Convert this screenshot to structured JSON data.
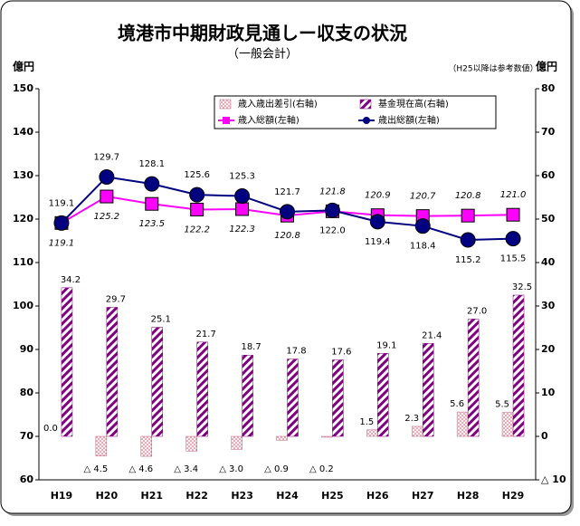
{
  "chart_data": {
    "type": "bar",
    "title": "境港市中期財政見通しー収支の状況",
    "subtitle": "（一般会計）",
    "note": "（H25以降は参考数値）",
    "y_label": "億円",
    "y2_label": "億円",
    "categories": [
      "H19",
      "H20",
      "H21",
      "H22",
      "H23",
      "H24",
      "H25",
      "H26",
      "H27",
      "H28",
      "H29"
    ],
    "ylim": [
      60,
      150
    ],
    "yticks": [
      60,
      70,
      80,
      90,
      100,
      110,
      120,
      130,
      140,
      150
    ],
    "y2lim": [
      -10,
      80
    ],
    "y2ticks": [
      {
        "value": -10,
        "label": "△ 10"
      },
      0,
      10,
      20,
      30,
      40,
      50,
      60,
      70,
      80
    ],
    "grid": false,
    "series": [
      {
        "name": "歳入歳出差引(右軸)",
        "type": "bar",
        "axis": "y2",
        "color": "#c06080",
        "values": [
          0.0,
          -4.5,
          -4.6,
          -3.4,
          -3.0,
          -0.9,
          -0.2,
          1.5,
          2.3,
          5.6,
          5.5
        ],
        "value_labels": [
          "0.0",
          "△ 4.5",
          "△ 4.6",
          "△ 3.4",
          "△ 3.0",
          "△ 0.9",
          "△ 0.2",
          "1.5",
          "2.3",
          "5.6",
          "5.5"
        ]
      },
      {
        "name": "基金現在高(右軸)",
        "type": "bar",
        "axis": "y2",
        "color": "#800080",
        "values": [
          34.2,
          29.7,
          25.1,
          21.7,
          18.7,
          17.8,
          17.6,
          19.1,
          21.4,
          27.0,
          32.5
        ],
        "value_labels": [
          "34.2",
          "29.7",
          "25.1",
          "21.7",
          "18.7",
          "17.8",
          "17.6",
          "19.1",
          "21.4",
          "27.0",
          "32.5"
        ]
      },
      {
        "name": "歳入総額(左軸)",
        "type": "line",
        "marker": "square",
        "color": "#ff00ff",
        "values": [
          119.1,
          125.2,
          123.5,
          122.2,
          122.3,
          120.8,
          121.8,
          120.9,
          120.7,
          120.8,
          121.0
        ],
        "value_labels": [
          "119.1",
          "125.2",
          "123.5",
          "122.2",
          "122.3",
          "120.8",
          "121.8",
          "120.9",
          "120.7",
          "120.8",
          "121.0"
        ]
      },
      {
        "name": "歳出総額(左軸)",
        "type": "line",
        "marker": "circle",
        "color": "#000080",
        "values": [
          119.1,
          129.7,
          128.1,
          125.6,
          125.3,
          121.7,
          122.0,
          119.4,
          118.4,
          115.2,
          115.5
        ],
        "value_labels": [
          "119.1",
          "129.7",
          "128.1",
          "125.6",
          "125.3",
          "121.7",
          "122.0",
          "119.4",
          "118.4",
          "115.2",
          "115.5"
        ]
      }
    ]
  }
}
